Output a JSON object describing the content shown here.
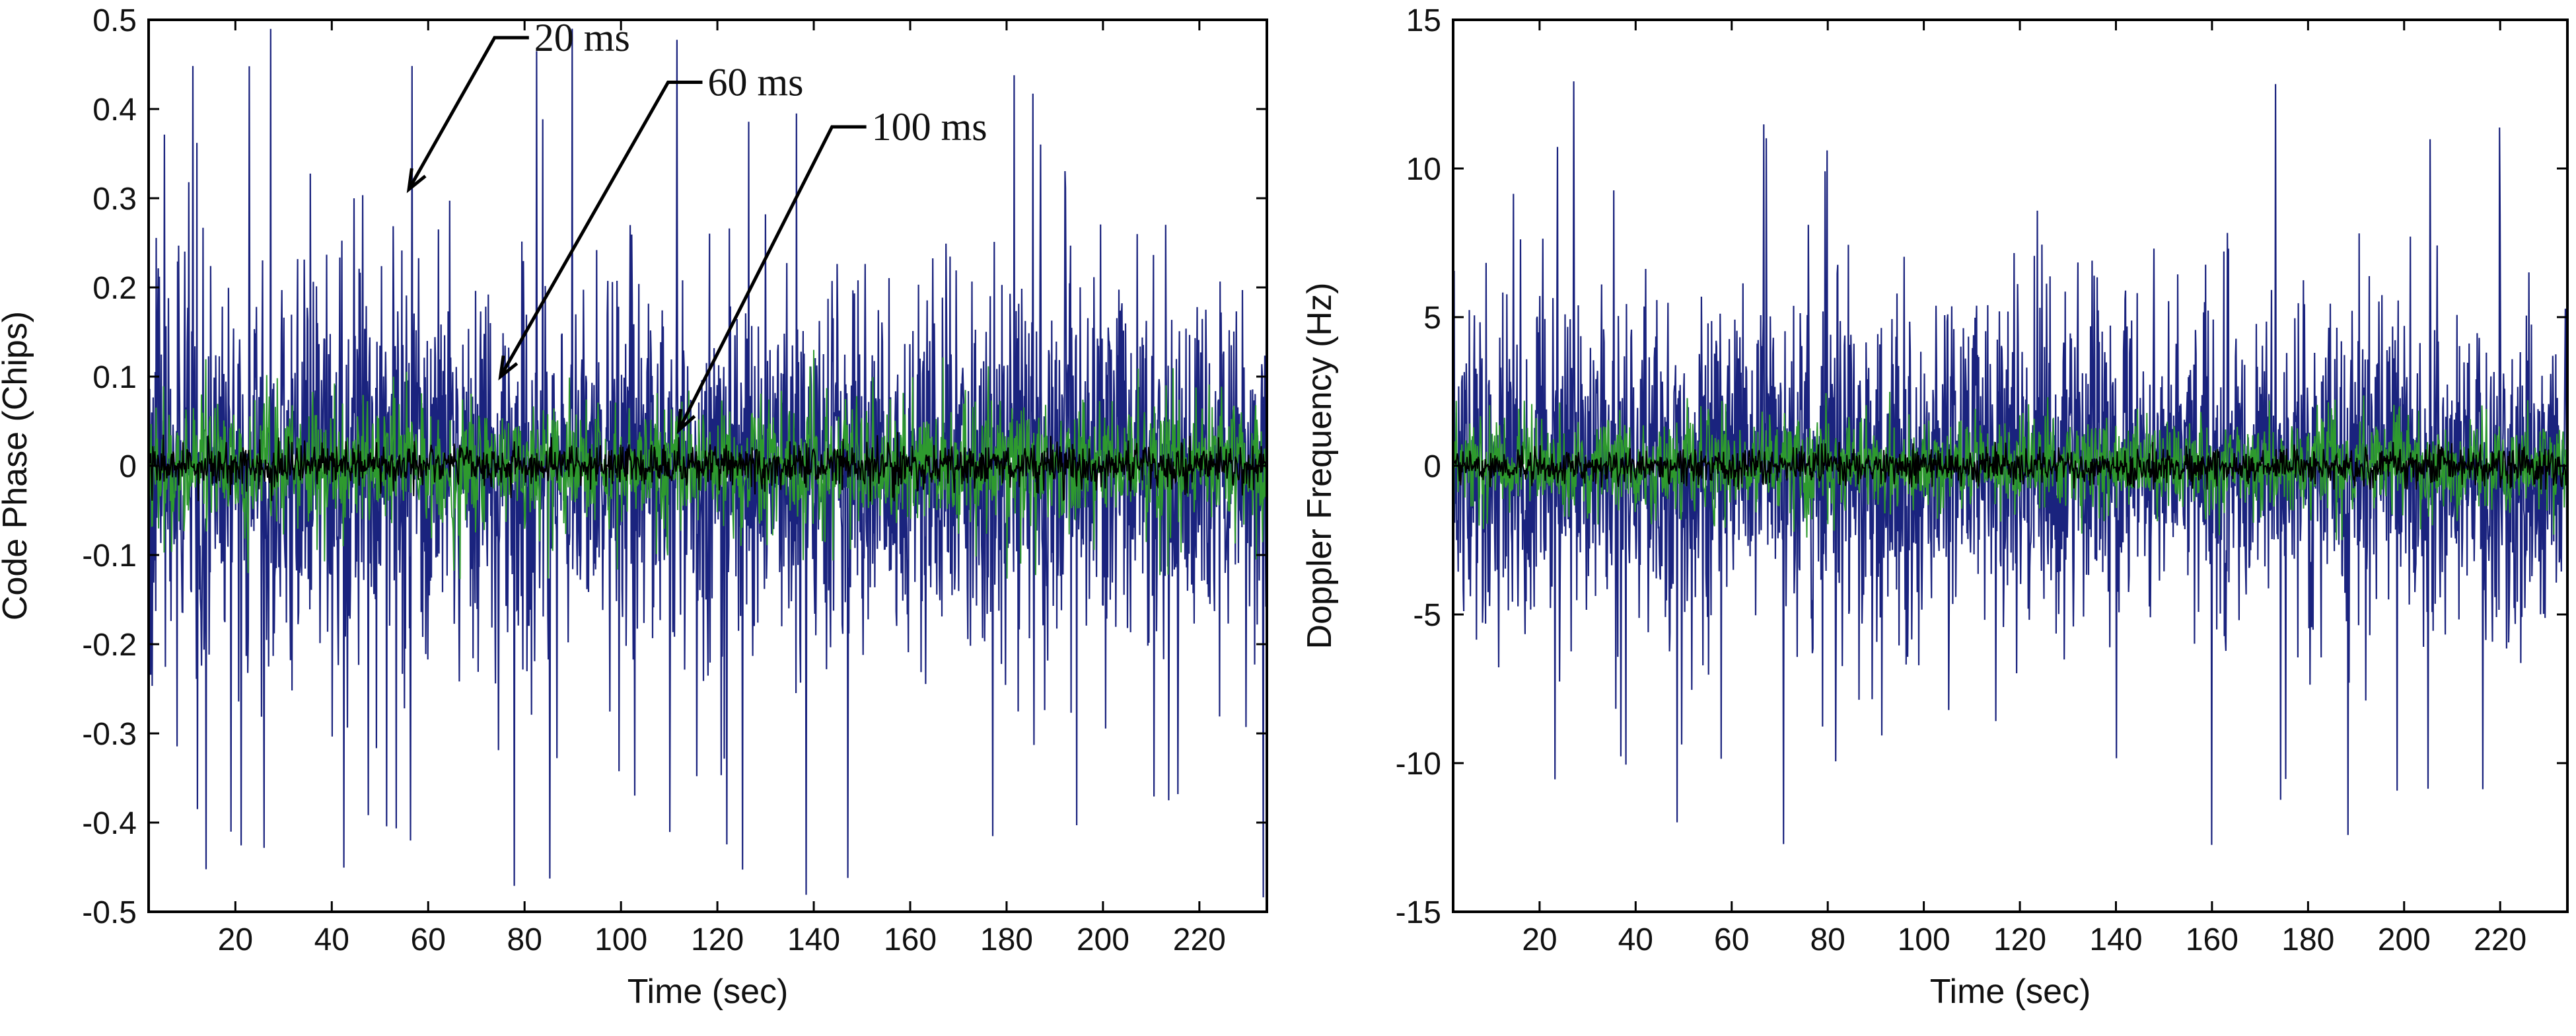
{
  "chart_data": [
    {
      "type": "line",
      "id": "code-phase",
      "xlabel": "Time (sec)",
      "ylabel": "Code Phase (Chips)",
      "xlim": [
        2,
        234
      ],
      "ylim": [
        -0.5,
        0.5
      ],
      "xticks": [
        20,
        40,
        60,
        80,
        100,
        120,
        140,
        160,
        180,
        200,
        220
      ],
      "yticks": [
        -0.5,
        -0.4,
        -0.3,
        -0.2,
        -0.1,
        0,
        0.1,
        0.2,
        0.3,
        0.4,
        0.5
      ],
      "series": [
        {
          "name": "20 ms",
          "color": "#1a237e",
          "approx_std": 0.11,
          "approx_peak": 0.49
        },
        {
          "name": "60 ms",
          "color": "#2e9a2e",
          "approx_std": 0.035,
          "approx_peak": 0.13
        },
        {
          "name": "100 ms",
          "color": "#000000",
          "approx_std": 0.012,
          "approx_peak": 0.04
        }
      ],
      "annotations": [
        {
          "text": "20 ms",
          "points_to": [
            56,
            0.31
          ],
          "label_at": [
            82,
            0.48
          ]
        },
        {
          "text": "60 ms",
          "points_to": [
            75,
            0.1
          ],
          "label_at": [
            118,
            0.43
          ]
        },
        {
          "text": "100 ms",
          "points_to": [
            112,
            0.04
          ],
          "label_at": [
            152,
            0.38
          ]
        }
      ]
    },
    {
      "type": "line",
      "id": "doppler",
      "xlabel": "Time (sec)",
      "ylabel": "Doppler Frequency (Hz)",
      "xlim": [
        2,
        234
      ],
      "ylim": [
        -15,
        15
      ],
      "xticks": [
        20,
        40,
        60,
        80,
        100,
        120,
        140,
        160,
        180,
        200,
        220
      ],
      "yticks": [
        -15,
        -10,
        -5,
        0,
        5,
        10,
        15
      ],
      "series": [
        {
          "name": "20 ms",
          "color": "#1a237e",
          "approx_std": 2.8,
          "approx_peak": 13
        },
        {
          "name": "60 ms",
          "color": "#2e9a2e",
          "approx_std": 0.8,
          "approx_peak": 2.5
        },
        {
          "name": "100 ms",
          "color": "#000000",
          "approx_std": 0.3,
          "approx_peak": 0.8
        }
      ],
      "annotations": []
    }
  ]
}
